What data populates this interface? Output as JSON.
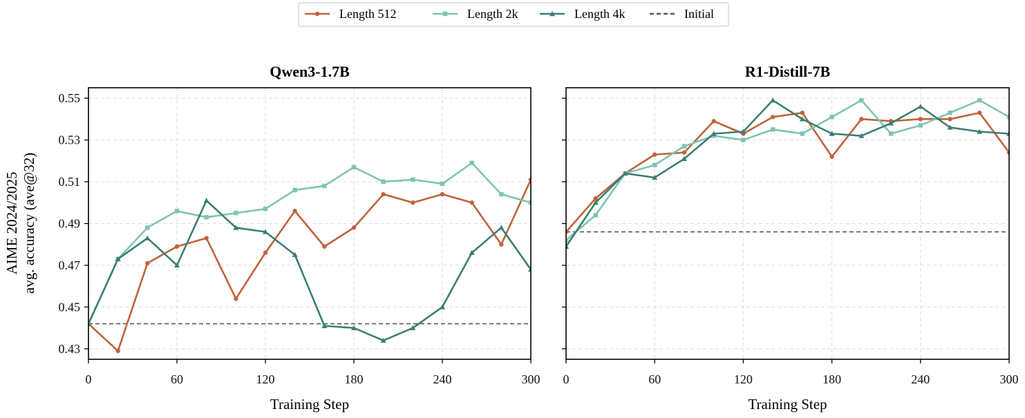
{
  "legend": [
    {
      "label": "Length 512",
      "color": "#c0623c",
      "marker": "circle",
      "dash": false
    },
    {
      "label": "Length 2k",
      "color": "#7fc4b2",
      "marker": "square",
      "dash": false
    },
    {
      "label": "Length 4k",
      "color": "#3a7f72",
      "marker": "triangle",
      "dash": false
    },
    {
      "label": "Initial",
      "color": "#555555",
      "marker": "none",
      "dash": true
    }
  ],
  "ylabel_line1": "AIME 2024/2025",
  "ylabel_line2": "avg. accuracy (ave@32)",
  "chart_data": [
    {
      "type": "line",
      "title": "Qwen3-1.7B",
      "xlabel": "Training Step",
      "xlim": [
        0,
        300
      ],
      "ylim": [
        0.425,
        0.555
      ],
      "xticks": [
        0,
        60,
        120,
        180,
        240,
        300
      ],
      "yticks": [
        0.43,
        0.45,
        0.47,
        0.49,
        0.51,
        0.53,
        0.55
      ],
      "ytick_labels": [
        "0.43",
        "0.45",
        "0.47",
        "0.49",
        "0.51",
        "0.53",
        "0.55"
      ],
      "grid": true,
      "x": [
        0,
        20,
        40,
        60,
        80,
        100,
        120,
        140,
        160,
        180,
        200,
        220,
        240,
        260,
        280,
        300
      ],
      "series": [
        {
          "name": "Length 512",
          "values": [
            0.442,
            0.429,
            0.471,
            0.479,
            0.483,
            0.454,
            0.476,
            0.496,
            0.479,
            0.488,
            0.504,
            0.5,
            0.504,
            0.5,
            0.48,
            0.511
          ]
        },
        {
          "name": "Length 2k",
          "values": [
            0.442,
            0.473,
            0.488,
            0.496,
            0.493,
            0.495,
            0.497,
            0.506,
            0.508,
            0.517,
            0.51,
            0.511,
            0.509,
            0.519,
            0.504,
            0.5
          ]
        },
        {
          "name": "Length 4k",
          "values": [
            0.442,
            0.473,
            0.483,
            0.47,
            0.501,
            0.488,
            0.486,
            0.475,
            0.441,
            0.44,
            0.434,
            0.44,
            0.45,
            0.476,
            0.488,
            0.468
          ]
        }
      ],
      "initial": 0.442
    },
    {
      "type": "line",
      "title": "R1-Distill-7B",
      "xlabel": "Training Step",
      "xlim": [
        0,
        300
      ],
      "ylim": [
        0.425,
        0.555
      ],
      "xticks": [
        0,
        60,
        120,
        180,
        240,
        300
      ],
      "yticks": [
        0.43,
        0.45,
        0.47,
        0.49,
        0.51,
        0.53,
        0.55
      ],
      "ytick_labels": [],
      "grid": true,
      "x": [
        0,
        20,
        40,
        60,
        80,
        100,
        120,
        140,
        160,
        180,
        200,
        220,
        240,
        260,
        280,
        300
      ],
      "series": [
        {
          "name": "Length 512",
          "values": [
            0.486,
            0.502,
            0.514,
            0.523,
            0.524,
            0.539,
            0.533,
            0.541,
            0.543,
            0.522,
            0.54,
            0.539,
            0.54,
            0.54,
            0.543,
            0.524
          ]
        },
        {
          "name": "Length 2k",
          "values": [
            0.482,
            0.494,
            0.514,
            0.518,
            0.527,
            0.532,
            0.53,
            0.535,
            0.533,
            0.541,
            0.549,
            0.533,
            0.537,
            0.543,
            0.549,
            0.541
          ]
        },
        {
          "name": "Length 4k",
          "values": [
            0.479,
            0.5,
            0.514,
            0.512,
            0.521,
            0.533,
            0.534,
            0.549,
            0.54,
            0.533,
            0.532,
            0.538,
            0.546,
            0.536,
            0.534,
            0.533
          ]
        }
      ],
      "initial": 0.486
    }
  ]
}
